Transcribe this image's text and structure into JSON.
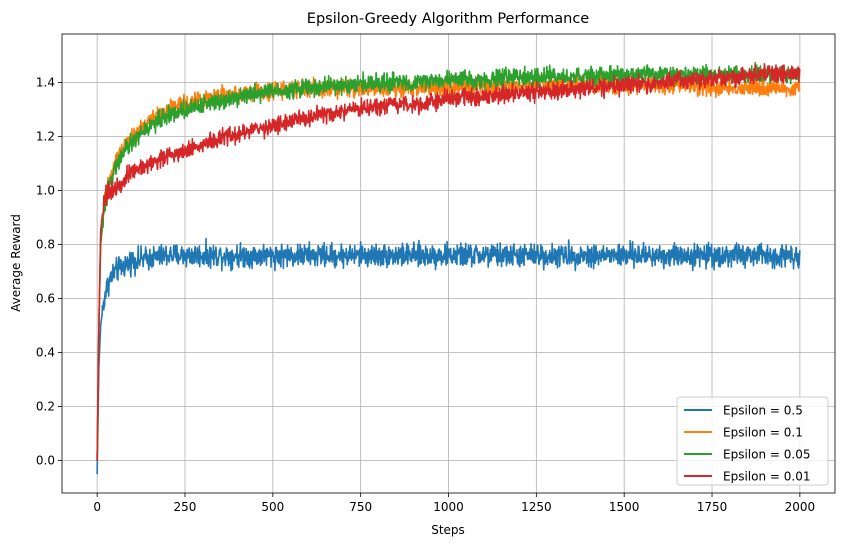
{
  "chart_data": {
    "type": "line",
    "title": "Epsilon-Greedy Algorithm Performance",
    "xlabel": "Steps",
    "ylabel": "Average Reward",
    "xlim": [
      -100,
      2100
    ],
    "ylim": [
      -0.12,
      1.58
    ],
    "xticks": [
      0,
      250,
      500,
      750,
      1000,
      1250,
      1500,
      1750,
      2000
    ],
    "xtick_labels": [
      "0",
      "250",
      "500",
      "750",
      "1000",
      "1250",
      "1500",
      "1750",
      "2000"
    ],
    "yticks": [
      0.0,
      0.2,
      0.4,
      0.6,
      0.8,
      1.0,
      1.2,
      1.4
    ],
    "ytick_labels": [
      "0.0",
      "0.2",
      "0.4",
      "0.6",
      "0.8",
      "1.0",
      "1.2",
      "1.4"
    ],
    "grid": true,
    "legend_position": "lower-right",
    "series": [
      {
        "name": "Epsilon = 0.5",
        "color": "#1f77b4",
        "x": [
          0,
          5,
          10,
          20,
          30,
          40,
          50,
          75,
          100,
          150,
          200,
          250,
          300,
          400,
          500,
          600,
          700,
          800,
          900,
          1000,
          1100,
          1200,
          1300,
          1400,
          1500,
          1600,
          1700,
          1800,
          1900,
          2000
        ],
        "y": [
          -0.05,
          0.35,
          0.5,
          0.6,
          0.65,
          0.68,
          0.7,
          0.72,
          0.74,
          0.75,
          0.76,
          0.76,
          0.76,
          0.76,
          0.76,
          0.76,
          0.76,
          0.76,
          0.76,
          0.76,
          0.76,
          0.76,
          0.76,
          0.76,
          0.76,
          0.76,
          0.76,
          0.76,
          0.76,
          0.76
        ],
        "noise": 0.04
      },
      {
        "name": "Epsilon = 0.1",
        "color": "#ff7f0e",
        "x": [
          0,
          5,
          10,
          20,
          30,
          50,
          75,
          100,
          150,
          200,
          250,
          300,
          400,
          500,
          600,
          700,
          800,
          900,
          1000,
          1100,
          1200,
          1300,
          1400,
          1500,
          1600,
          1700,
          1800,
          1900,
          2000
        ],
        "y": [
          0.0,
          0.5,
          0.8,
          0.95,
          1.02,
          1.1,
          1.16,
          1.2,
          1.26,
          1.3,
          1.32,
          1.34,
          1.36,
          1.37,
          1.38,
          1.38,
          1.38,
          1.38,
          1.38,
          1.39,
          1.39,
          1.39,
          1.39,
          1.39,
          1.39,
          1.39,
          1.38,
          1.38,
          1.38
        ],
        "noise": 0.03
      },
      {
        "name": "Epsilon = 0.05",
        "color": "#2ca02c",
        "x": [
          0,
          5,
          10,
          20,
          30,
          50,
          75,
          100,
          150,
          200,
          250,
          300,
          400,
          500,
          600,
          700,
          800,
          900,
          1000,
          1100,
          1200,
          1300,
          1400,
          1500,
          1600,
          1700,
          1800,
          1900,
          2000
        ],
        "y": [
          0.0,
          0.5,
          0.8,
          0.93,
          1.0,
          1.08,
          1.14,
          1.18,
          1.24,
          1.28,
          1.3,
          1.32,
          1.35,
          1.37,
          1.38,
          1.39,
          1.4,
          1.4,
          1.41,
          1.41,
          1.42,
          1.42,
          1.42,
          1.43,
          1.43,
          1.43,
          1.43,
          1.43,
          1.43
        ],
        "noise": 0.03
      },
      {
        "name": "Epsilon = 0.01",
        "color": "#d62728",
        "x": [
          0,
          5,
          10,
          20,
          30,
          50,
          75,
          100,
          150,
          200,
          250,
          300,
          400,
          500,
          600,
          700,
          800,
          900,
          1000,
          1100,
          1200,
          1300,
          1400,
          1500,
          1600,
          1700,
          1800,
          1900,
          2000
        ],
        "y": [
          0.0,
          0.5,
          0.85,
          0.97,
          0.99,
          1.01,
          1.04,
          1.07,
          1.1,
          1.13,
          1.15,
          1.17,
          1.21,
          1.24,
          1.27,
          1.29,
          1.31,
          1.32,
          1.34,
          1.35,
          1.36,
          1.37,
          1.38,
          1.39,
          1.4,
          1.41,
          1.42,
          1.43,
          1.44
        ],
        "noise": 0.03
      }
    ]
  }
}
